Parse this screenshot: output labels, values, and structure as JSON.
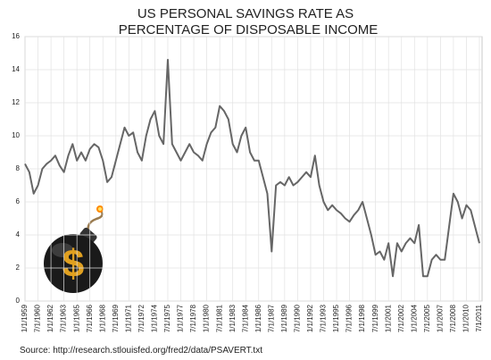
{
  "chart_data": {
    "type": "line",
    "title": [
      "US PERSONAL SAVINGS RATE AS",
      "PERCENTAGE OF DISPOSABLE INCOME"
    ],
    "source": "Source: http://research.stlouisfed.org/fred2/data/PSAVERT.txt",
    "categories": [
      "1/1/1959",
      null,
      null,
      "7/1/1960",
      null,
      null,
      "1/1/1962",
      null,
      null,
      "7/1/1963",
      null,
      null,
      "1/1/1965",
      null,
      null,
      "7/1/1966",
      null,
      null,
      "1/1/1968",
      null,
      null,
      "7/1/1969",
      null,
      null,
      "1/1/1971",
      null,
      null,
      "7/1/1972",
      null,
      null,
      "1/1/1974",
      null,
      null,
      "7/1/1975",
      null,
      null,
      "1/1/1977",
      null,
      null,
      "7/1/1978",
      null,
      null,
      "1/1/1980",
      null,
      null,
      "7/1/1981",
      null,
      null,
      "1/1/1983",
      null,
      null,
      "7/1/1984",
      null,
      null,
      "1/1/1986",
      null,
      null,
      "7/1/1987",
      null,
      null,
      "1/1/1989",
      null,
      null,
      "7/1/1990",
      null,
      null,
      "1/1/1992",
      null,
      null,
      "7/1/1993",
      null,
      null,
      "1/1/1995",
      null,
      null,
      "7/1/1996",
      null,
      null,
      "1/1/1998",
      null,
      null,
      "7/1/1999",
      null,
      null,
      "1/1/2001",
      null,
      null,
      "7/1/2002",
      null,
      null,
      "1/1/2004",
      null,
      null,
      "7/1/2005",
      null,
      null,
      "1/1/2007",
      null,
      null,
      "7/1/2008",
      null,
      null,
      "1/1/2010",
      null,
      null,
      "7/1/2011"
    ],
    "values": [
      8.3,
      7.8,
      6.5,
      7.0,
      8.0,
      8.3,
      8.5,
      8.8,
      8.2,
      7.8,
      8.8,
      9.5,
      8.5,
      9.0,
      8.5,
      9.2,
      9.5,
      9.3,
      8.5,
      7.2,
      7.5,
      8.5,
      9.5,
      10.5,
      10.0,
      10.2,
      9.0,
      8.5,
      10.0,
      11.0,
      11.5,
      10.0,
      9.5,
      14.6,
      9.5,
      9.0,
      8.5,
      9.0,
      9.5,
      9.0,
      8.8,
      8.5,
      9.5,
      10.2,
      10.5,
      11.8,
      11.5,
      11.0,
      9.5,
      9.0,
      10.0,
      10.5,
      9.0,
      8.5,
      8.5,
      7.5,
      6.5,
      3.0,
      7.0,
      7.2,
      7.0,
      7.5,
      7.0,
      7.2,
      7.5,
      7.8,
      7.5,
      8.8,
      7.0,
      6.0,
      5.5,
      5.8,
      5.5,
      5.3,
      5.0,
      4.8,
      5.2,
      5.5,
      6.0,
      5.0,
      4.0,
      2.8,
      3.0,
      2.5,
      3.5,
      1.5,
      3.5,
      3.0,
      3.5,
      3.8,
      3.5,
      4.6,
      1.5,
      1.5,
      2.5,
      2.8,
      2.5,
      2.5,
      4.5,
      6.5,
      6.0,
      5.0,
      5.8,
      5.5,
      4.5,
      3.5
    ],
    "color": "#666666",
    "ylim": [
      0,
      16
    ],
    "yticks": [
      0,
      2,
      4,
      6,
      8,
      10,
      12,
      14,
      16
    ],
    "grid": true
  }
}
